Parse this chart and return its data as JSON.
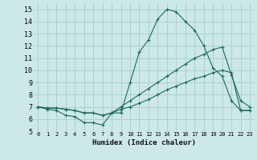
{
  "xlabel": "Humidex (Indice chaleur)",
  "background_color": "#cce8e8",
  "grid_color": "#aacccc",
  "line_color": "#1a6b5a",
  "xlim": [
    -0.5,
    23.5
  ],
  "ylim": [
    5,
    15.5
  ],
  "yticks": [
    5,
    6,
    7,
    8,
    9,
    10,
    11,
    12,
    13,
    14,
    15
  ],
  "xticks": [
    0,
    1,
    2,
    3,
    4,
    5,
    6,
    7,
    8,
    9,
    10,
    11,
    12,
    13,
    14,
    15,
    16,
    17,
    18,
    19,
    20,
    21,
    22,
    23
  ],
  "line1_x": [
    0,
    1,
    2,
    3,
    4,
    5,
    6,
    7,
    8,
    9,
    10,
    11,
    12,
    13,
    14,
    15,
    16,
    17,
    18,
    19,
    20,
    21,
    22,
    23
  ],
  "line1_y": [
    7.0,
    6.8,
    6.7,
    6.3,
    6.2,
    5.7,
    5.7,
    5.5,
    6.5,
    6.5,
    9.0,
    11.5,
    12.5,
    14.2,
    15.0,
    14.8,
    14.0,
    13.3,
    12.0,
    10.2,
    9.5,
    7.5,
    6.7,
    6.7
  ],
  "line2_x": [
    0,
    1,
    2,
    3,
    4,
    5,
    6,
    7,
    8,
    9,
    10,
    11,
    12,
    13,
    14,
    15,
    16,
    17,
    18,
    19,
    20,
    21,
    22,
    23
  ],
  "line2_y": [
    7.0,
    6.9,
    6.9,
    6.8,
    6.7,
    6.5,
    6.5,
    6.3,
    6.5,
    7.0,
    7.5,
    8.0,
    8.5,
    9.0,
    9.5,
    10.0,
    10.5,
    11.0,
    11.3,
    11.7,
    11.9,
    9.6,
    7.5,
    7.0
  ],
  "line3_x": [
    0,
    1,
    2,
    3,
    4,
    5,
    6,
    7,
    8,
    9,
    10,
    11,
    12,
    13,
    14,
    15,
    16,
    17,
    18,
    19,
    20,
    21,
    22,
    23
  ],
  "line3_y": [
    7.0,
    6.9,
    6.9,
    6.8,
    6.7,
    6.5,
    6.5,
    6.3,
    6.5,
    6.8,
    7.0,
    7.3,
    7.6,
    8.0,
    8.4,
    8.7,
    9.0,
    9.3,
    9.5,
    9.8,
    10.0,
    9.8,
    6.7,
    6.7
  ],
  "xlabel_fontsize": 6.5,
  "tick_fontsize_x": 5.0,
  "tick_fontsize_y": 6.0
}
